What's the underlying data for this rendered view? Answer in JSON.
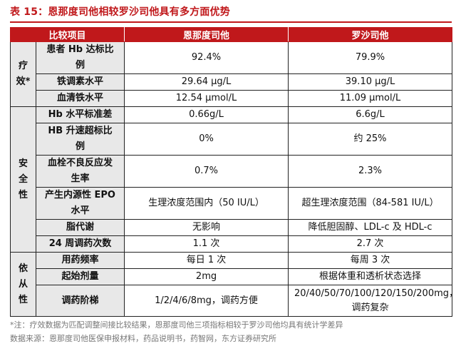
{
  "title": "表 15：恩那度司他相较罗沙司他具有多方面优势",
  "header": {
    "col_item": "比较项目",
    "col_a": "恩那度司他",
    "col_b": "罗沙司他"
  },
  "sections": {
    "efficacy": "疗效*",
    "safety": "安全性",
    "dependency": "依从性"
  },
  "rows": [
    {
      "item": "患者 Hb 达标比例",
      "a": "92.4%",
      "b": "79.9%"
    },
    {
      "item": "铁调素水平",
      "a": "29.64 μg/L",
      "b": "39.10 μg/L"
    },
    {
      "item": "血清铁水平",
      "a": "12.54 μmol/L",
      "b": "11.09 μmol/L"
    },
    {
      "item": "Hb 水平标准差",
      "a": "0.66g/L",
      "b": "6.6g/L"
    },
    {
      "item": "HB 升速超标比例",
      "a": "0%",
      "b": "约 25%"
    },
    {
      "item": "血栓不良反应发生率",
      "a": "0.7%",
      "b": "2.3%"
    },
    {
      "item": "产生内源性 EPO 水平",
      "a": "生理浓度范围内（50 IU/L）",
      "b": "超生理浓度范围（84-581 IU/L）"
    },
    {
      "item": "脂代谢",
      "a": "无影响",
      "b": "降低胆固醇、LDL-c 及 HDL-c"
    },
    {
      "item": "24 周调药次数",
      "a": "1.1 次",
      "b": "2.7 次"
    },
    {
      "item": "用药频率",
      "a": "每日 1 次",
      "b": "每周 3 次"
    },
    {
      "item": "起始剂量",
      "a": "2mg",
      "b": "根据体重和透析状态选择"
    },
    {
      "item": "调药阶梯",
      "a": "1/2/4/6/8mg，调药方便",
      "b": "20/40/50/70/100/120/150/200mg，调药复杂"
    }
  ],
  "footnote": "*注：疗效数据为匹配调整间接比较结果，恩那度司他三项指标相较于罗沙司他均具有统计学差异",
  "source": "数据来源：恩那度司他医保申报材料，药品说明书，药智网，东方证券研究所"
}
